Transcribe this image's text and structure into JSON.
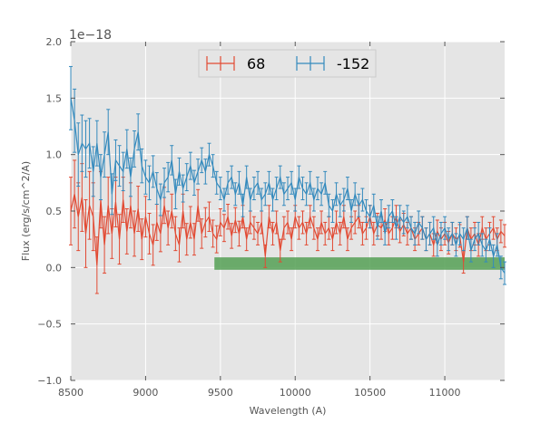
{
  "chart_data": {
    "type": "line",
    "title": "",
    "xlabel": "Wavelength (A)",
    "ylabel": "Flux (erg/s/cm^2/A)",
    "offset_text": "1e−18",
    "xlim": [
      8500,
      11400
    ],
    "ylim": [
      -1.0,
      2.0
    ],
    "x_ticks": [
      8500,
      9000,
      9500,
      10000,
      10500,
      11000
    ],
    "x_tick_labels": [
      "8500",
      "9000",
      "9500",
      "10000",
      "10500",
      "11000"
    ],
    "y_ticks": [
      -1.0,
      -0.5,
      0.0,
      0.5,
      1.0,
      1.5,
      2.0
    ],
    "y_tick_labels": [
      "−1.0",
      "−0.5",
      "0.0",
      "0.5",
      "1.0",
      "1.5",
      "2.0"
    ],
    "grid": true,
    "legend_position": "top-center",
    "band": {
      "x_start": 9460,
      "x_end": 11400,
      "y_low": -0.02,
      "y_high": 0.09,
      "color": "#55a055"
    },
    "x": [
      8500,
      8525,
      8550,
      8575,
      8600,
      8625,
      8650,
      8675,
      8700,
      8725,
      8750,
      8775,
      8800,
      8825,
      8850,
      8875,
      8900,
      8925,
      8950,
      8975,
      9000,
      9025,
      9050,
      9075,
      9100,
      9125,
      9150,
      9175,
      9200,
      9225,
      9250,
      9275,
      9300,
      9325,
      9350,
      9375,
      9400,
      9425,
      9450,
      9475,
      9500,
      9525,
      9550,
      9575,
      9600,
      9625,
      9650,
      9675,
      9700,
      9725,
      9750,
      9775,
      9800,
      9825,
      9850,
      9875,
      9900,
      9925,
      9950,
      9975,
      10000,
      10025,
      10050,
      10075,
      10100,
      10125,
      10150,
      10175,
      10200,
      10225,
      10250,
      10275,
      10300,
      10325,
      10350,
      10375,
      10400,
      10425,
      10450,
      10475,
      10500,
      10525,
      10550,
      10575,
      10600,
      10625,
      10650,
      10675,
      10700,
      10725,
      10750,
      10775,
      10800,
      10825,
      10850,
      10875,
      10900,
      10925,
      10950,
      10975,
      11000,
      11025,
      11050,
      11075,
      11100,
      11125,
      11150,
      11175,
      11200,
      11225,
      11250,
      11275,
      11300,
      11325,
      11350,
      11375,
      11400
    ],
    "series": [
      {
        "name": "68",
        "color": "#e24a33",
        "values": [
          0.5,
          0.65,
          0.45,
          0.62,
          0.3,
          0.55,
          0.45,
          0.02,
          0.6,
          0.2,
          0.55,
          0.3,
          0.58,
          0.25,
          0.6,
          0.32,
          0.55,
          0.3,
          0.52,
          0.25,
          0.45,
          0.3,
          0.2,
          0.4,
          0.3,
          0.55,
          0.35,
          0.5,
          0.3,
          0.2,
          0.5,
          0.25,
          0.4,
          0.25,
          0.55,
          0.3,
          0.4,
          0.45,
          0.3,
          0.25,
          0.4,
          0.35,
          0.45,
          0.28,
          0.42,
          0.3,
          0.45,
          0.25,
          0.4,
          0.35,
          0.3,
          0.4,
          0.1,
          0.45,
          0.3,
          0.4,
          0.15,
          0.35,
          0.4,
          0.25,
          0.45,
          0.35,
          0.4,
          0.3,
          0.45,
          0.35,
          0.25,
          0.4,
          0.3,
          0.35,
          0.25,
          0.4,
          0.3,
          0.45,
          0.25,
          0.35,
          0.4,
          0.45,
          0.3,
          0.35,
          0.45,
          0.3,
          0.38,
          0.35,
          0.42,
          0.3,
          0.35,
          0.45,
          0.32,
          0.38,
          0.3,
          0.35,
          0.25,
          0.3,
          0.35,
          0.25,
          0.3,
          0.2,
          0.32,
          0.25,
          0.3,
          0.22,
          0.3,
          0.25,
          0.28,
          0.05,
          0.35,
          0.25,
          0.3,
          0.2,
          0.35,
          0.25,
          0.3,
          0.35,
          0.25,
          0.32,
          0.28
        ],
        "errors": [
          0.3,
          0.3,
          0.3,
          0.3,
          0.3,
          0.3,
          0.3,
          0.25,
          0.25,
          0.25,
          0.25,
          0.22,
          0.22,
          0.22,
          0.2,
          0.2,
          0.2,
          0.2,
          0.2,
          0.18,
          0.18,
          0.18,
          0.18,
          0.16,
          0.16,
          0.16,
          0.15,
          0.15,
          0.15,
          0.15,
          0.15,
          0.14,
          0.14,
          0.14,
          0.14,
          0.13,
          0.13,
          0.13,
          0.12,
          0.12,
          0.12,
          0.12,
          0.11,
          0.11,
          0.11,
          0.11,
          0.1,
          0.1,
          0.1,
          0.1,
          0.1,
          0.1,
          0.1,
          0.1,
          0.1,
          0.1,
          0.1,
          0.1,
          0.1,
          0.1,
          0.1,
          0.1,
          0.1,
          0.1,
          0.1,
          0.1,
          0.1,
          0.1,
          0.1,
          0.1,
          0.1,
          0.1,
          0.1,
          0.1,
          0.1,
          0.1,
          0.1,
          0.1,
          0.1,
          0.1,
          0.1,
          0.1,
          0.1,
          0.1,
          0.1,
          0.1,
          0.1,
          0.1,
          0.1,
          0.1,
          0.1,
          0.1,
          0.1,
          0.1,
          0.1,
          0.1,
          0.1,
          0.1,
          0.1,
          0.1,
          0.1,
          0.1,
          0.1,
          0.1,
          0.1,
          0.1,
          0.1,
          0.1,
          0.1,
          0.1,
          0.1,
          0.1,
          0.1,
          0.1,
          0.1,
          0.1,
          0.1
        ]
      },
      {
        "name": "-152",
        "color": "#348abd",
        "values": [
          1.5,
          1.3,
          1.0,
          1.1,
          1.05,
          1.1,
          0.85,
          1.1,
          0.8,
          1.0,
          1.2,
          0.65,
          0.95,
          0.9,
          0.85,
          1.05,
          0.8,
          1.05,
          1.2,
          0.9,
          0.8,
          0.75,
          0.85,
          0.7,
          0.6,
          0.75,
          0.8,
          0.95,
          0.65,
          0.85,
          0.7,
          0.8,
          0.9,
          0.75,
          0.85,
          0.95,
          0.85,
          1.0,
          0.9,
          0.75,
          0.7,
          0.6,
          0.75,
          0.8,
          0.65,
          0.75,
          0.55,
          0.8,
          0.6,
          0.7,
          0.75,
          0.6,
          0.65,
          0.75,
          0.6,
          0.7,
          0.8,
          0.65,
          0.7,
          0.75,
          0.6,
          0.8,
          0.7,
          0.65,
          0.75,
          0.6,
          0.7,
          0.65,
          0.75,
          0.55,
          0.5,
          0.65,
          0.55,
          0.6,
          0.7,
          0.5,
          0.65,
          0.55,
          0.6,
          0.5,
          0.45,
          0.55,
          0.35,
          0.5,
          0.3,
          0.45,
          0.5,
          0.35,
          0.45,
          0.4,
          0.45,
          0.35,
          0.3,
          0.4,
          0.35,
          0.25,
          0.3,
          0.35,
          0.2,
          0.3,
          0.35,
          0.25,
          0.3,
          0.2,
          0.3,
          0.25,
          0.35,
          0.15,
          0.25,
          0.3,
          0.2,
          0.15,
          0.25,
          0.1,
          0.2,
          0.0,
          -0.05
        ],
        "errors": [
          0.28,
          0.28,
          0.28,
          0.25,
          0.25,
          0.22,
          0.22,
          0.2,
          0.2,
          0.2,
          0.2,
          0.18,
          0.18,
          0.18,
          0.17,
          0.17,
          0.17,
          0.16,
          0.16,
          0.15,
          0.15,
          0.15,
          0.14,
          0.14,
          0.14,
          0.13,
          0.13,
          0.13,
          0.13,
          0.12,
          0.12,
          0.12,
          0.12,
          0.11,
          0.11,
          0.11,
          0.11,
          0.1,
          0.1,
          0.1,
          0.1,
          0.1,
          0.1,
          0.1,
          0.1,
          0.1,
          0.1,
          0.1,
          0.1,
          0.1,
          0.1,
          0.1,
          0.1,
          0.1,
          0.1,
          0.1,
          0.1,
          0.1,
          0.1,
          0.1,
          0.1,
          0.1,
          0.1,
          0.1,
          0.1,
          0.1,
          0.1,
          0.1,
          0.1,
          0.1,
          0.1,
          0.1,
          0.1,
          0.1,
          0.1,
          0.1,
          0.1,
          0.1,
          0.1,
          0.1,
          0.1,
          0.1,
          0.1,
          0.1,
          0.1,
          0.1,
          0.1,
          0.1,
          0.1,
          0.1,
          0.1,
          0.1,
          0.1,
          0.1,
          0.1,
          0.1,
          0.1,
          0.1,
          0.1,
          0.1,
          0.1,
          0.1,
          0.1,
          0.1,
          0.1,
          0.1,
          0.1,
          0.1,
          0.1,
          0.1,
          0.1,
          0.1,
          0.1,
          0.1,
          0.1,
          0.1,
          0.1
        ]
      }
    ]
  }
}
